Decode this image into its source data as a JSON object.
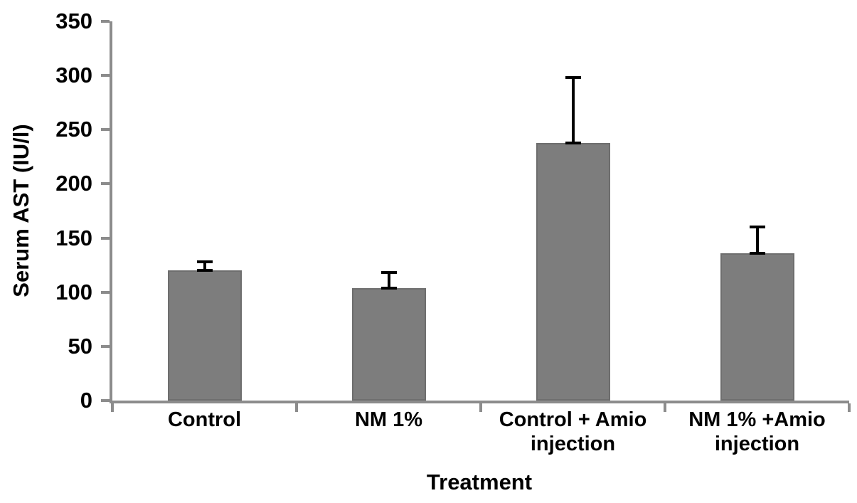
{
  "figure": {
    "background": "#ffffff"
  },
  "chart_data": {
    "type": "bar",
    "title": "",
    "xlabel": "Treatment",
    "ylabel": "Serum AST (IU/l)",
    "categories": [
      "Control",
      "NM 1%",
      "Control + Amio\ninjection",
      "NM 1% +Amio\ninjection"
    ],
    "values": [
      120,
      104,
      238,
      136
    ],
    "error_plus": [
      8,
      14,
      60,
      24
    ],
    "ylim": [
      0,
      350
    ],
    "yticks": [
      0,
      50,
      100,
      150,
      200,
      250,
      300,
      350
    ],
    "grid": false,
    "legend_position": "none",
    "bar_color": "#7d7d7d",
    "bar_border_color": "#6e6e6e",
    "axis_color": "#8c8c8c",
    "error_bar_color": "#000000",
    "text_color": "#000000"
  }
}
